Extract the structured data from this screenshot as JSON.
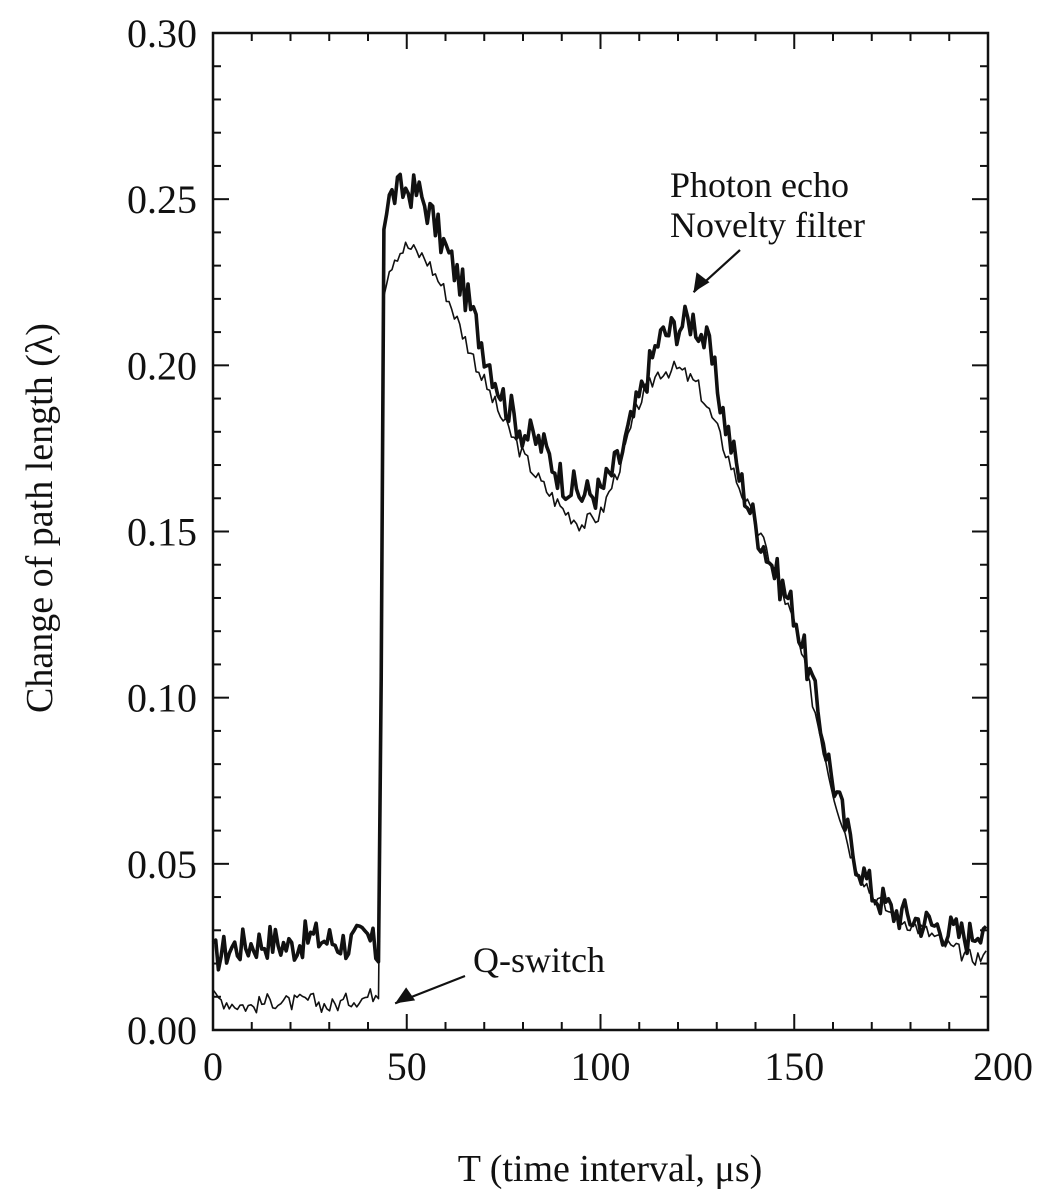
{
  "chart_data": {
    "type": "line",
    "xlabel": "T (time interval, μs)",
    "ylabel": "Change of path length  (λ)",
    "xlim": [
      0,
      200
    ],
    "ylim": [
      0,
      0.3
    ],
    "xticks": [
      "0",
      "50",
      "100",
      "150",
      "200"
    ],
    "yticks": [
      "0.00",
      "0.05",
      "0.10",
      "0.15",
      "0.20",
      "0.25",
      "0.30"
    ],
    "grid": false,
    "legend": "none",
    "annotations": [
      {
        "text": "Q-switch",
        "points_to": [
          47,
          0.008
        ]
      },
      {
        "lines": [
          "Photon echo",
          "Novelty filter"
        ],
        "points_to": [
          124,
          0.222
        ]
      }
    ],
    "series": [
      {
        "style": "thick-noisy",
        "x": [
          0,
          5,
          10,
          15,
          20,
          25,
          30,
          35,
          40,
          43,
          44,
          45,
          47,
          50,
          53,
          56,
          60,
          65,
          70,
          75,
          80,
          85,
          90,
          95,
          100,
          105,
          110,
          115,
          120,
          124,
          128,
          132,
          136,
          140,
          145,
          150,
          155,
          160,
          165,
          170,
          175,
          180,
          185,
          190,
          195,
          200
        ],
        "values": [
          0.022,
          0.025,
          0.026,
          0.027,
          0.025,
          0.028,
          0.027,
          0.026,
          0.028,
          0.022,
          0.24,
          0.249,
          0.252,
          0.253,
          0.252,
          0.246,
          0.235,
          0.222,
          0.205,
          0.19,
          0.18,
          0.176,
          0.166,
          0.161,
          0.162,
          0.172,
          0.19,
          0.208,
          0.212,
          0.214,
          0.205,
          0.184,
          0.166,
          0.152,
          0.138,
          0.126,
          0.102,
          0.075,
          0.054,
          0.042,
          0.036,
          0.034,
          0.032,
          0.03,
          0.028,
          0.034
        ]
      },
      {
        "style": "thin-smooth",
        "x": [
          0,
          5,
          10,
          15,
          20,
          25,
          30,
          35,
          40,
          43,
          44,
          45,
          47,
          50,
          55,
          60,
          65,
          70,
          75,
          80,
          85,
          90,
          95,
          100,
          105,
          110,
          115,
          120,
          125,
          130,
          135,
          140,
          145,
          150,
          155,
          160,
          165,
          170,
          175,
          180,
          185,
          190,
          195,
          200
        ],
        "values": [
          0.01,
          0.008,
          0.007,
          0.009,
          0.008,
          0.009,
          0.007,
          0.009,
          0.01,
          0.012,
          0.22,
          0.228,
          0.233,
          0.236,
          0.232,
          0.222,
          0.208,
          0.195,
          0.183,
          0.173,
          0.164,
          0.157,
          0.152,
          0.155,
          0.17,
          0.189,
          0.198,
          0.199,
          0.194,
          0.181,
          0.166,
          0.152,
          0.138,
          0.122,
          0.098,
          0.072,
          0.052,
          0.041,
          0.035,
          0.032,
          0.029,
          0.025,
          0.022,
          0.022
        ]
      }
    ]
  }
}
